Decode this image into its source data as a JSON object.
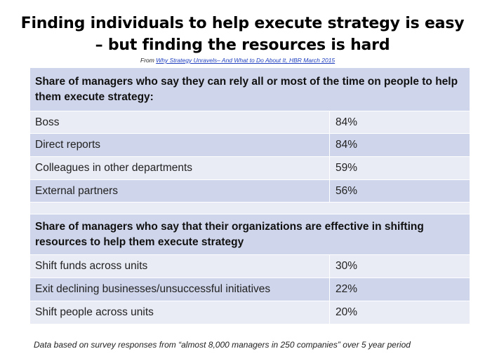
{
  "title": {
    "line1": "Finding individuals to help execute strategy is easy",
    "line2": "– but finding the resources is hard"
  },
  "source": {
    "prefix": "From ",
    "link_text": "Why Strategy Unravels– And What to Do About It, HBR March 2015"
  },
  "table": {
    "section1": {
      "header": "Share of managers who say they can rely all or most of the time on people to help them execute strategy:",
      "rows": [
        {
          "label": "Boss",
          "value": "84%"
        },
        {
          "label": "Direct reports",
          "value": "84%"
        },
        {
          "label": "Colleagues in other departments",
          "value": "59%"
        },
        {
          "label": "External partners",
          "value": "56%"
        }
      ]
    },
    "section2": {
      "header": "Share of managers who say that their organizations  are effective in shifting resources to help them execute strategy",
      "rows": [
        {
          "label": "Shift funds across units",
          "value": "30%"
        },
        {
          "label": "Exit declining businesses/unsuccessful initiatives",
          "value": "22%"
        },
        {
          "label": "Shift people across units",
          "value": "20%"
        }
      ]
    }
  },
  "footnote": "Data based on survey responses from “almost 8,000 managers in 250 companies” over 5 year period",
  "colors": {
    "header_fill": "#cfd5ea",
    "light_row_fill": "#e9ebf5",
    "dark_row_fill": "#cfd5ea",
    "link": "#1f3fbf"
  }
}
